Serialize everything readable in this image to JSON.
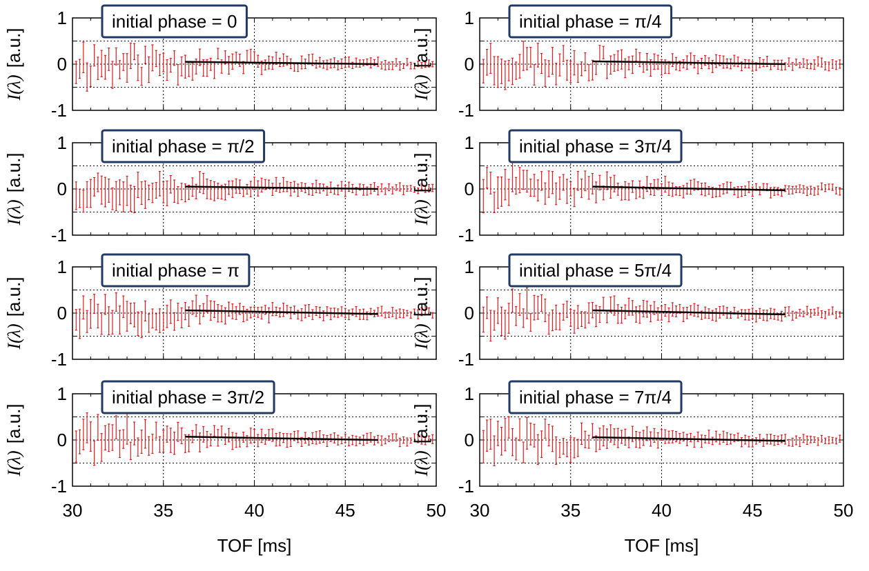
{
  "figure": {
    "xlabel": "TOF [ms]",
    "ylabel_symbol": "I(λ)",
    "ylabel_unit": "[a.u.]"
  },
  "chart_data": [
    {
      "type": "scatter",
      "title": "initial phase = 0",
      "xlabel": "TOF [ms]",
      "ylabel": "I(λ) [a.u.]",
      "xlim": [
        30,
        50
      ],
      "ylim": [
        -1,
        1
      ],
      "xticks": [
        "30",
        "35",
        "40",
        "45",
        "50"
      ],
      "yticks": [
        "-1",
        "0",
        "1"
      ],
      "grid": true,
      "points": {
        "x_start": 30.2,
        "x_step": 0.2,
        "count": 99,
        "y_noise": [
          0.35,
          0.3,
          0.25,
          0.18,
          0.12,
          0.08,
          0.05,
          0.04
        ],
        "error": [
          0.28,
          0.25,
          0.2,
          0.15,
          0.12,
          0.1,
          0.08,
          0.07
        ],
        "seed": 11
      },
      "fit_line": {
        "x": [
          36.2,
          46.8
        ],
        "y": [
          0.05,
          0.0
        ]
      },
      "series_color": "#e41a1c"
    },
    {
      "type": "scatter",
      "title": "initial phase = π/4",
      "xlabel": "TOF [ms]",
      "ylabel": "I(λ) [a.u.]",
      "xlim": [
        30,
        50
      ],
      "ylim": [
        -1,
        1
      ],
      "xticks": [
        "30",
        "35",
        "40",
        "45",
        "50"
      ],
      "yticks": [
        "-1",
        "0",
        "1"
      ],
      "grid": true,
      "points": {
        "x_start": 30.2,
        "x_step": 0.2,
        "count": 99,
        "y_noise": [
          0.3,
          0.28,
          0.22,
          0.15,
          0.1,
          0.07,
          0.06,
          0.06
        ],
        "error": [
          0.28,
          0.25,
          0.2,
          0.15,
          0.12,
          0.1,
          0.08,
          0.08
        ],
        "seed": 23
      },
      "fit_line": {
        "x": [
          36.2,
          46.8
        ],
        "y": [
          0.06,
          0.0
        ]
      },
      "series_color": "#e41a1c"
    },
    {
      "type": "scatter",
      "title": "initial phase = π/2",
      "xlabel": "TOF [ms]",
      "ylabel": "I(λ) [a.u.]",
      "xlim": [
        30,
        50
      ],
      "ylim": [
        -1,
        1
      ],
      "xticks": [
        "30",
        "35",
        "40",
        "45",
        "50"
      ],
      "yticks": [
        "-1",
        "0",
        "1"
      ],
      "grid": true,
      "points": {
        "x_start": 30.2,
        "x_step": 0.2,
        "count": 99,
        "y_noise": [
          0.3,
          0.25,
          0.18,
          0.12,
          0.08,
          0.06,
          0.05,
          0.05
        ],
        "error": [
          0.28,
          0.25,
          0.2,
          0.15,
          0.12,
          0.1,
          0.08,
          0.07
        ],
        "seed": 37
      },
      "fit_line": {
        "x": [
          36.2,
          46.8
        ],
        "y": [
          0.05,
          0.0
        ]
      },
      "series_color": "#e41a1c"
    },
    {
      "type": "scatter",
      "title": "initial phase = 3π/4",
      "xlabel": "TOF [ms]",
      "ylabel": "I(λ) [a.u.]",
      "xlim": [
        30,
        50
      ],
      "ylim": [
        -1,
        1
      ],
      "xticks": [
        "30",
        "35",
        "40",
        "45",
        "50"
      ],
      "yticks": [
        "-1",
        "0",
        "1"
      ],
      "grid": true,
      "points": {
        "x_start": 30.2,
        "x_step": 0.2,
        "count": 99,
        "y_noise": [
          0.32,
          0.25,
          0.18,
          0.12,
          0.09,
          0.07,
          0.06,
          0.06
        ],
        "error": [
          0.28,
          0.25,
          0.2,
          0.15,
          0.12,
          0.1,
          0.08,
          0.08
        ],
        "seed": 41
      },
      "fit_line": {
        "x": [
          36.2,
          46.8
        ],
        "y": [
          0.05,
          -0.03
        ]
      },
      "series_color": "#e41a1c"
    },
    {
      "type": "scatter",
      "title": "initial phase = π",
      "xlabel": "TOF [ms]",
      "ylabel": "I(λ) [a.u.]",
      "xlim": [
        30,
        50
      ],
      "ylim": [
        -1,
        1
      ],
      "xticks": [
        "30",
        "35",
        "40",
        "45",
        "50"
      ],
      "yticks": [
        "-1",
        "0",
        "1"
      ],
      "grid": true,
      "points": {
        "x_start": 30.2,
        "x_step": 0.2,
        "count": 99,
        "y_noise": [
          0.3,
          0.28,
          0.2,
          0.12,
          0.08,
          0.06,
          0.05,
          0.06
        ],
        "error": [
          0.3,
          0.27,
          0.2,
          0.15,
          0.12,
          0.1,
          0.08,
          0.08
        ],
        "seed": 53
      },
      "fit_line": {
        "x": [
          36.2,
          46.8
        ],
        "y": [
          0.06,
          -0.02
        ]
      },
      "series_color": "#e41a1c"
    },
    {
      "type": "scatter",
      "title": "initial phase = 5π/4",
      "xlabel": "TOF [ms]",
      "ylabel": "I(λ) [a.u.]",
      "xlim": [
        30,
        50
      ],
      "ylim": [
        -1,
        1
      ],
      "xticks": [
        "30",
        "35",
        "40",
        "45",
        "50"
      ],
      "yticks": [
        "-1",
        "0",
        "1"
      ],
      "grid": true,
      "points": {
        "x_start": 30.2,
        "x_step": 0.2,
        "count": 99,
        "y_noise": [
          0.3,
          0.28,
          0.18,
          0.1,
          0.07,
          0.06,
          0.06,
          0.07
        ],
        "error": [
          0.3,
          0.27,
          0.2,
          0.15,
          0.12,
          0.1,
          0.08,
          0.08
        ],
        "seed": 67
      },
      "fit_line": {
        "x": [
          36.2,
          46.8
        ],
        "y": [
          0.06,
          -0.03
        ]
      },
      "series_color": "#e41a1c"
    },
    {
      "type": "scatter",
      "title": "initial phase = 3π/2",
      "xlabel": "TOF [ms]",
      "ylabel": "I(λ) [a.u.]",
      "xlim": [
        30,
        50
      ],
      "ylim": [
        -1,
        1
      ],
      "xticks": [
        "30",
        "35",
        "40",
        "45",
        "50"
      ],
      "yticks": [
        "-1",
        "0",
        "1"
      ],
      "grid": true,
      "points": {
        "x_start": 30.2,
        "x_step": 0.2,
        "count": 99,
        "y_noise": [
          0.3,
          0.28,
          0.2,
          0.12,
          0.08,
          0.06,
          0.06,
          0.06
        ],
        "error": [
          0.3,
          0.27,
          0.2,
          0.15,
          0.12,
          0.1,
          0.08,
          0.08
        ],
        "seed": 71
      },
      "fit_line": {
        "x": [
          36.2,
          46.8
        ],
        "y": [
          0.07,
          0.0
        ]
      },
      "series_color": "#e41a1c"
    },
    {
      "type": "scatter",
      "title": "initial phase = 7π/4",
      "xlabel": "TOF [ms]",
      "ylabel": "I(λ) [a.u.]",
      "xlim": [
        30,
        50
      ],
      "ylim": [
        -1,
        1
      ],
      "xticks": [
        "30",
        "35",
        "40",
        "45",
        "50"
      ],
      "yticks": [
        "-1",
        "0",
        "1"
      ],
      "grid": true,
      "points": {
        "x_start": 30.2,
        "x_step": 0.2,
        "count": 99,
        "y_noise": [
          0.32,
          0.28,
          0.2,
          0.12,
          0.08,
          0.07,
          0.06,
          0.08
        ],
        "error": [
          0.3,
          0.27,
          0.2,
          0.15,
          0.12,
          0.1,
          0.08,
          0.08
        ],
        "seed": 83
      },
      "fit_line": {
        "x": [
          36.2,
          46.8
        ],
        "y": [
          0.06,
          -0.02
        ]
      },
      "series_color": "#e41a1c"
    }
  ]
}
